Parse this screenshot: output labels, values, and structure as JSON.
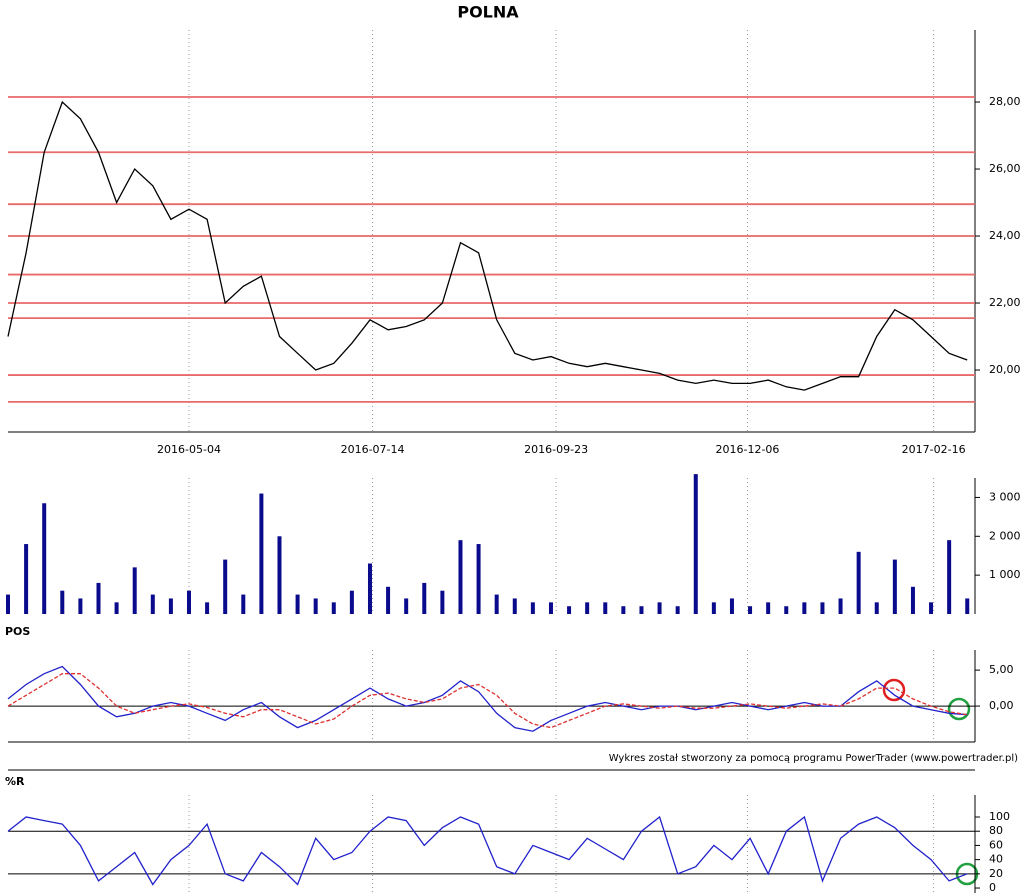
{
  "footer": "Wykres został stworzony za pomocą programu PowerTrader (www.powertrader.pl)",
  "chart_data": [
    {
      "type": "line",
      "title": "POLNA",
      "x": [
        "2016-02-24",
        "2016-03-02",
        "2016-03-09",
        "2016-03-16",
        "2016-03-23",
        "2016-03-30",
        "2016-04-06",
        "2016-04-13",
        "2016-04-20",
        "2016-04-27",
        "2016-05-04",
        "2016-05-11",
        "2016-05-18",
        "2016-05-25",
        "2016-06-01",
        "2016-06-08",
        "2016-06-15",
        "2016-06-22",
        "2016-06-29",
        "2016-07-06",
        "2016-07-13",
        "2016-07-20",
        "2016-07-27",
        "2016-08-03",
        "2016-08-10",
        "2016-08-17",
        "2016-08-24",
        "2016-08-31",
        "2016-09-07",
        "2016-09-14",
        "2016-09-21",
        "2016-09-28",
        "2016-10-05",
        "2016-10-12",
        "2016-10-19",
        "2016-10-26",
        "2016-11-02",
        "2016-11-09",
        "2016-11-16",
        "2016-11-23",
        "2016-11-30",
        "2016-12-07",
        "2016-12-14",
        "2016-12-21",
        "2016-12-28",
        "2017-01-04",
        "2017-01-11",
        "2017-01-18",
        "2017-01-25",
        "2017-02-01",
        "2017-02-08",
        "2017-02-15",
        "2017-02-22",
        "2017-03-01"
      ],
      "series": [
        {
          "color": "#000000",
          "values": [
            21.0,
            23.5,
            26.5,
            28.0,
            27.5,
            26.5,
            25.0,
            26.0,
            25.5,
            24.5,
            24.8,
            24.5,
            22.0,
            22.5,
            22.8,
            21.0,
            20.5,
            20.0,
            20.2,
            20.8,
            21.5,
            21.2,
            21.3,
            21.5,
            22.0,
            23.8,
            23.5,
            21.5,
            20.5,
            20.3,
            20.4,
            20.2,
            20.1,
            20.2,
            20.1,
            20.0,
            19.9,
            19.7,
            19.6,
            19.7,
            19.6,
            19.6,
            19.7,
            19.5,
            19.4,
            19.6,
            19.8,
            19.8,
            21.0,
            21.8,
            21.5,
            21.0,
            20.5,
            20.3
          ]
        }
      ],
      "levels": [
        28.15,
        26.5,
        24.95,
        24.0,
        22.85,
        22.0,
        21.55,
        19.85,
        19.05
      ],
      "level_color": "#e86a6a",
      "xlim": [
        "2016-02-24",
        "2017-03-04"
      ],
      "xticks": [
        "2016-05-04",
        "2016-07-14",
        "2016-09-23",
        "2016-12-06",
        "2017-02-16"
      ],
      "ylim": [
        18.15,
        30.15
      ],
      "yticks": [
        {
          "value": 20,
          "label": "20,00"
        },
        {
          "value": 22,
          "label": "22,00"
        },
        {
          "value": 24,
          "label": "24,00"
        },
        {
          "value": 26,
          "label": "26,00"
        },
        {
          "value": 28,
          "label": "28,00"
        }
      ],
      "grid": "dotted"
    },
    {
      "type": "bar",
      "x": [
        "2016-02-24",
        "2016-03-02",
        "2016-03-09",
        "2016-03-16",
        "2016-03-23",
        "2016-03-30",
        "2016-04-06",
        "2016-04-13",
        "2016-04-20",
        "2016-04-27",
        "2016-05-04",
        "2016-05-11",
        "2016-05-18",
        "2016-05-25",
        "2016-06-01",
        "2016-06-08",
        "2016-06-15",
        "2016-06-22",
        "2016-06-29",
        "2016-07-06",
        "2016-07-13",
        "2016-07-20",
        "2016-07-27",
        "2016-08-03",
        "2016-08-10",
        "2016-08-17",
        "2016-08-24",
        "2016-08-31",
        "2016-09-07",
        "2016-09-14",
        "2016-09-21",
        "2016-09-28",
        "2016-10-05",
        "2016-10-12",
        "2016-10-19",
        "2016-10-26",
        "2016-11-02",
        "2016-11-09",
        "2016-11-16",
        "2016-11-23",
        "2016-11-30",
        "2016-12-07",
        "2016-12-14",
        "2016-12-21",
        "2016-12-28",
        "2017-01-04",
        "2017-01-11",
        "2017-01-18",
        "2017-01-25",
        "2017-02-01",
        "2017-02-08",
        "2017-02-15",
        "2017-02-22",
        "2017-03-01"
      ],
      "series": [
        {
          "color": "#0a0a8c",
          "values": [
            500,
            1800,
            2850,
            600,
            400,
            800,
            300,
            1200,
            500,
            400,
            600,
            300,
            1400,
            500,
            3100,
            2000,
            500,
            400,
            300,
            600,
            1300,
            700,
            400,
            800,
            600,
            1900,
            1800,
            500,
            400,
            300,
            300,
            200,
            300,
            300,
            200,
            200,
            300,
            200,
            3600,
            300,
            400,
            200,
            300,
            200,
            300,
            300,
            400,
            1600,
            300,
            1400,
            700,
            300,
            1900,
            400
          ]
        }
      ],
      "xlim": [
        "2016-02-24",
        "2017-03-04"
      ],
      "ylim": [
        0,
        3500
      ],
      "yticks": [
        {
          "value": 1000,
          "label": "1 000"
        },
        {
          "value": 2000,
          "label": "2 000"
        },
        {
          "value": 3000,
          "label": "3 000"
        }
      ],
      "grid": "dotted"
    },
    {
      "type": "line",
      "title": "POS",
      "x": [
        "2016-02-24",
        "2016-03-02",
        "2016-03-09",
        "2016-03-16",
        "2016-03-23",
        "2016-03-30",
        "2016-04-06",
        "2016-04-13",
        "2016-04-20",
        "2016-04-27",
        "2016-05-04",
        "2016-05-11",
        "2016-05-18",
        "2016-05-25",
        "2016-06-01",
        "2016-06-08",
        "2016-06-15",
        "2016-06-22",
        "2016-06-29",
        "2016-07-06",
        "2016-07-13",
        "2016-07-20",
        "2016-07-27",
        "2016-08-03",
        "2016-08-10",
        "2016-08-17",
        "2016-08-24",
        "2016-08-31",
        "2016-09-07",
        "2016-09-14",
        "2016-09-21",
        "2016-09-28",
        "2016-10-05",
        "2016-10-12",
        "2016-10-19",
        "2016-10-26",
        "2016-11-02",
        "2016-11-09",
        "2016-11-16",
        "2016-11-23",
        "2016-11-30",
        "2016-12-07",
        "2016-12-14",
        "2016-12-21",
        "2016-12-28",
        "2017-01-04",
        "2017-01-11",
        "2017-01-18",
        "2017-01-25",
        "2017-02-01",
        "2017-02-08",
        "2017-02-15",
        "2017-02-22",
        "2017-03-01"
      ],
      "series": [
        {
          "color": "#2222cc",
          "values": [
            1,
            3,
            4.5,
            5.5,
            3,
            0,
            -1.5,
            -1,
            0,
            0.5,
            0,
            -1,
            -2,
            -0.5,
            0.5,
            -1.5,
            -3,
            -2,
            -0.5,
            1,
            2.5,
            1,
            0,
            0.5,
            1.5,
            3.5,
            2,
            -1,
            -3,
            -3.5,
            -2,
            -1,
            0,
            0.5,
            0,
            -0.5,
            0,
            0,
            -0.5,
            0,
            0.5,
            0,
            -0.5,
            0,
            0.5,
            0,
            0,
            2,
            3.5,
            1.5,
            0,
            -0.5,
            -1,
            -1.2
          ]
        },
        {
          "color": "#e03030",
          "dashed": true,
          "values": [
            0,
            1.5,
            3,
            4.5,
            4.5,
            2.5,
            0,
            -1,
            -0.5,
            0,
            0.3,
            -0.2,
            -1,
            -1.5,
            -0.5,
            -0.5,
            -1.5,
            -2.5,
            -1.8,
            0,
            1.5,
            1.8,
            1,
            0.5,
            1,
            2.5,
            3,
            1.5,
            -1,
            -2.5,
            -3,
            -2,
            -1,
            0,
            0.3,
            0,
            -0.3,
            0,
            -0.3,
            -0.3,
            0,
            0.3,
            0,
            -0.3,
            0,
            0.3,
            0,
            1,
            2.5,
            2.5,
            1,
            0,
            -0.8,
            -1.2
          ]
        }
      ],
      "levels": [
        0
      ],
      "level_color": "#000000",
      "xlim": [
        "2016-02-24",
        "2017-03-04"
      ],
      "ylim": [
        -5,
        7.8
      ],
      "yticks": [
        {
          "value": 0,
          "label": "0,00"
        },
        {
          "value": 5,
          "label": "5,00"
        }
      ],
      "grid": "dotted"
    },
    {
      "type": "line",
      "title": "%R",
      "x": [
        "2016-02-24",
        "2016-03-02",
        "2016-03-09",
        "2016-03-16",
        "2016-03-23",
        "2016-03-30",
        "2016-04-06",
        "2016-04-13",
        "2016-04-20",
        "2016-04-27",
        "2016-05-04",
        "2016-05-11",
        "2016-05-18",
        "2016-05-25",
        "2016-06-01",
        "2016-06-08",
        "2016-06-15",
        "2016-06-22",
        "2016-06-29",
        "2016-07-06",
        "2016-07-13",
        "2016-07-20",
        "2016-07-27",
        "2016-08-03",
        "2016-08-10",
        "2016-08-17",
        "2016-08-24",
        "2016-08-31",
        "2016-09-07",
        "2016-09-14",
        "2016-09-21",
        "2016-09-28",
        "2016-10-05",
        "2016-10-12",
        "2016-10-19",
        "2016-10-26",
        "2016-11-02",
        "2016-11-09",
        "2016-11-16",
        "2016-11-23",
        "2016-11-30",
        "2016-12-07",
        "2016-12-14",
        "2016-12-21",
        "2016-12-28",
        "2017-01-04",
        "2017-01-11",
        "2017-01-18",
        "2017-01-25",
        "2017-02-01",
        "2017-02-08",
        "2017-02-15",
        "2017-02-22",
        "2017-03-01"
      ],
      "series": [
        {
          "color": "#2222cc",
          "values": [
            80,
            100,
            95,
            90,
            60,
            10,
            30,
            50,
            5,
            40,
            60,
            90,
            20,
            10,
            50,
            30,
            5,
            70,
            40,
            50,
            80,
            100,
            95,
            60,
            85,
            100,
            90,
            30,
            20,
            60,
            50,
            40,
            70,
            55,
            40,
            80,
            100,
            20,
            30,
            60,
            40,
            70,
            20,
            80,
            100,
            10,
            70,
            90,
            100,
            85,
            60,
            40,
            10,
            20
          ]
        }
      ],
      "levels": [
        20,
        80
      ],
      "level_color": "#000000",
      "xlim": [
        "2016-02-24",
        "2017-03-04"
      ],
      "ylim": [
        -7,
        131
      ],
      "yticks": [
        0,
        20,
        40,
        60,
        80,
        100
      ],
      "grid": "dotted"
    }
  ]
}
